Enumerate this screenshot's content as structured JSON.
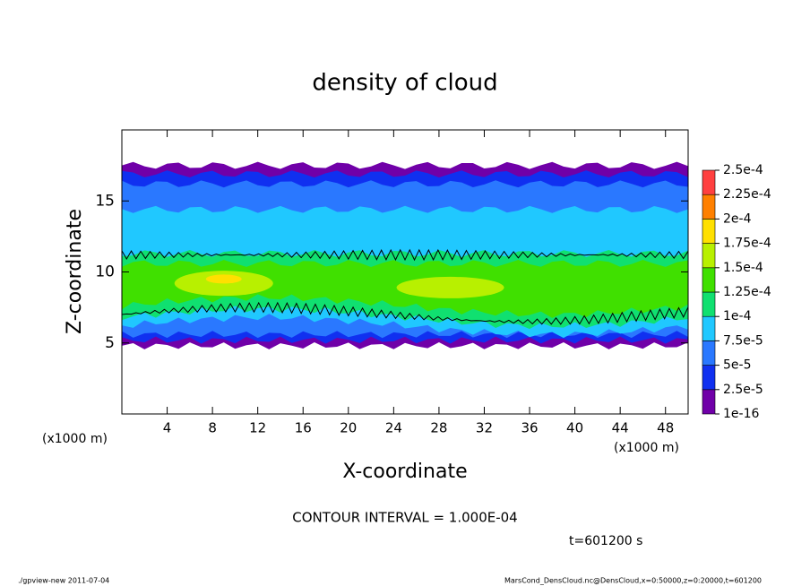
{
  "chart_data": {
    "type": "contour",
    "title": "density of cloud",
    "xlabel": "X-coordinate",
    "ylabel": "Z-coordinate",
    "x_unit": "(x1000 m)",
    "y_unit": "(x1000 m)",
    "xlim": [
      0,
      50
    ],
    "xticks": [
      4,
      8,
      12,
      16,
      20,
      24,
      28,
      32,
      36,
      40,
      44,
      48
    ],
    "ylim": [
      0,
      20
    ],
    "yticks": [
      5,
      10,
      15
    ],
    "colorbar": {
      "levels": [
        {
          "value": 1e-16,
          "label": "1e-16"
        },
        {
          "value": 2.5e-05,
          "label": "2.5e-5"
        },
        {
          "value": 5e-05,
          "label": "5e-5"
        },
        {
          "value": 7.5e-05,
          "label": "7.5e-5"
        },
        {
          "value": 0.0001,
          "label": "1e-4"
        },
        {
          "value": 0.000125,
          "label": "1.25e-4"
        },
        {
          "value": 0.00015,
          "label": "1.5e-4"
        },
        {
          "value": 0.000175,
          "label": "1.75e-4"
        },
        {
          "value": 0.0002,
          "label": "2e-4"
        },
        {
          "value": 0.000225,
          "label": "2.25e-4"
        },
        {
          "value": 0.00025,
          "label": "2.5e-4"
        }
      ],
      "colors": [
        "#7000a8",
        "#1030f0",
        "#2a78ff",
        "#20c8ff",
        "#10e070",
        "#40e000",
        "#b8f000",
        "#ffe000",
        "#ff8000",
        "#ff4040"
      ]
    },
    "contour_label": "CONTOUR INTERVAL = 1.000E-04",
    "time_label": "t=601200 s",
    "footer_left": "./gpview-new  2011-07-04",
    "footer_right": "MarsCond_DensCloud.nc@DensCloud,x=0:50000,z=0:20000,t=601200"
  }
}
